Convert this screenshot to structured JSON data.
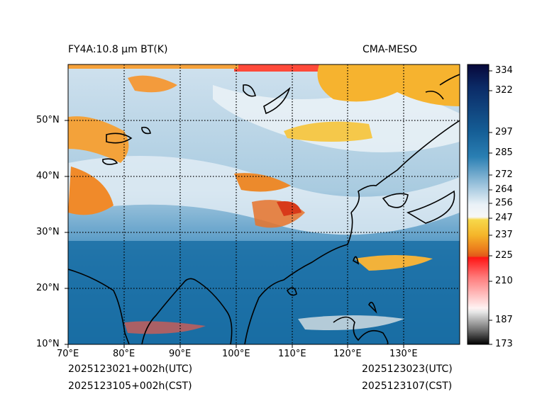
{
  "header": {
    "left_title": "FY4A:10.8 µm BT(K)",
    "right_title": "CMA-MESO"
  },
  "map": {
    "x_ticks": [
      "70°E",
      "80°E",
      "90°E",
      "100°E",
      "110°E",
      "120°E",
      "130°E"
    ],
    "y_ticks": [
      "50°N",
      "40°N",
      "30°N",
      "20°N",
      "10°N"
    ]
  },
  "colorbar": {
    "ticks": [
      "334",
      "322",
      "297",
      "285",
      "272",
      "264",
      "256",
      "247",
      "237",
      "225",
      "210",
      "187",
      "173"
    ],
    "colors": {
      "top": "#08083a",
      "blue": "#1f6ea3",
      "light": "#dce9f2",
      "yellow": "#f5c530",
      "orange": "#e8741a",
      "red": "#ff1a1a",
      "gray": "#7a7a7a"
    }
  },
  "footer": {
    "left_utc": "2025123021+002h(UTC)",
    "left_cst": "2025123105+002h(CST)",
    "right_utc": "2025123023(UTC)",
    "right_cst": "2025123107(CST)"
  }
}
